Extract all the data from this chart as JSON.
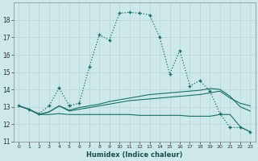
{
  "xlabel": "Humidex (Indice chaleur)",
  "ylabel": "",
  "bg_color": "#cce8e8",
  "grid_color": "#b8d8d8",
  "line_color": "#1a7068",
  "xlim": [
    -0.5,
    23.5
  ],
  "ylim": [
    11,
    19
  ],
  "yticks": [
    11,
    12,
    13,
    14,
    15,
    16,
    17,
    18
  ],
  "xticks": [
    0,
    1,
    2,
    3,
    4,
    5,
    6,
    7,
    8,
    9,
    10,
    11,
    12,
    13,
    14,
    15,
    16,
    17,
    18,
    19,
    20,
    21,
    22,
    23
  ],
  "s1_x": [
    0,
    1,
    2,
    3,
    4,
    5,
    6,
    7,
    8,
    9,
    10,
    11,
    12,
    13,
    14,
    15,
    16,
    17,
    18,
    19,
    20,
    21,
    22,
    23
  ],
  "s1_y": [
    13.05,
    12.85,
    12.6,
    13.05,
    14.1,
    13.05,
    13.2,
    15.3,
    17.15,
    16.85,
    18.4,
    18.45,
    18.4,
    18.3,
    17.0,
    14.9,
    16.25,
    14.2,
    14.5,
    13.9,
    12.6,
    11.8,
    11.8,
    11.55
  ],
  "s2_x": [
    0,
    1,
    2,
    3,
    4,
    5,
    6,
    7,
    8,
    9,
    10,
    11,
    12,
    13,
    14,
    15,
    16,
    17,
    18,
    19,
    20,
    21,
    22,
    23
  ],
  "s2_y": [
    13.05,
    12.85,
    12.55,
    12.55,
    12.6,
    12.55,
    12.55,
    12.55,
    12.55,
    12.55,
    12.55,
    12.55,
    12.5,
    12.5,
    12.5,
    12.5,
    12.5,
    12.45,
    12.45,
    12.45,
    12.55,
    12.55,
    11.85,
    11.55
  ],
  "s3_x": [
    0,
    1,
    2,
    3,
    4,
    5,
    6,
    7,
    8,
    9,
    10,
    11,
    12,
    13,
    14,
    15,
    16,
    17,
    18,
    19,
    20,
    21,
    22,
    23
  ],
  "s3_y": [
    13.05,
    12.85,
    12.55,
    12.7,
    13.05,
    12.75,
    12.85,
    12.95,
    13.05,
    13.15,
    13.25,
    13.35,
    13.4,
    13.45,
    13.5,
    13.55,
    13.6,
    13.65,
    13.7,
    13.8,
    13.9,
    13.5,
    13.2,
    13.05
  ],
  "s4_x": [
    0,
    1,
    2,
    3,
    4,
    5,
    6,
    7,
    8,
    9,
    10,
    11,
    12,
    13,
    14,
    15,
    16,
    17,
    18,
    19,
    20,
    21,
    22,
    23
  ],
  "s4_y": [
    13.05,
    12.85,
    12.55,
    12.7,
    13.05,
    12.8,
    12.95,
    13.05,
    13.15,
    13.3,
    13.4,
    13.5,
    13.6,
    13.7,
    13.75,
    13.8,
    13.85,
    13.9,
    13.95,
    14.05,
    14.0,
    13.6,
    13.0,
    12.75
  ]
}
